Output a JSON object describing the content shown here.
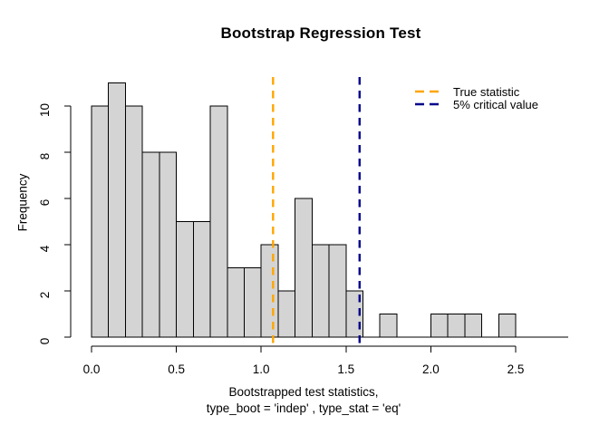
{
  "title": "Bootstrap Regression Test",
  "legend": {
    "items": [
      {
        "label": "True statistic",
        "color": "#FFA500"
      },
      {
        "label": "5% critical value",
        "color": "#00008B"
      }
    ]
  },
  "chart_data": {
    "type": "bar",
    "subtype": "histogram",
    "title": "Bootstrap Regression Test",
    "ylabel": "Frequency",
    "xlabel_line1": "Bootstrapped test statistics,",
    "xlabel_line2": "type_boot = 'indep' , type_stat = 'eq'",
    "bin_start": 0.0,
    "bin_width": 0.1,
    "counts": [
      10,
      11,
      10,
      8,
      8,
      5,
      5,
      10,
      3,
      3,
      4,
      2,
      6,
      4,
      4,
      2,
      0,
      1,
      0,
      0,
      1,
      1,
      1,
      0,
      1
    ],
    "total_observations": 100,
    "x_ticks": [
      0.0,
      0.5,
      1.0,
      1.5,
      2.0,
      2.5
    ],
    "x_tick_labels": [
      "0.0",
      "0.5",
      "1.0",
      "1.5",
      "2.0",
      "2.5"
    ],
    "y_ticks": [
      0,
      2,
      4,
      6,
      8,
      10
    ],
    "y_tick_labels": [
      "0",
      "2",
      "4",
      "6",
      "8",
      "10"
    ],
    "xlim": [
      0.0,
      2.8
    ],
    "ylim": [
      0,
      11
    ],
    "grid": false,
    "legend_position": "top-right",
    "bar_fill": "#D4D4D4",
    "bar_border": "#000000",
    "axis_color": "#000000",
    "vlines": [
      {
        "name": "true-statistic",
        "x": 1.07,
        "color": "#FFA500",
        "style": "dashed",
        "label": "True statistic"
      },
      {
        "name": "critical-value-5pct",
        "x": 1.58,
        "color": "#00008B",
        "style": "dashed",
        "label": "5% critical value"
      }
    ]
  }
}
